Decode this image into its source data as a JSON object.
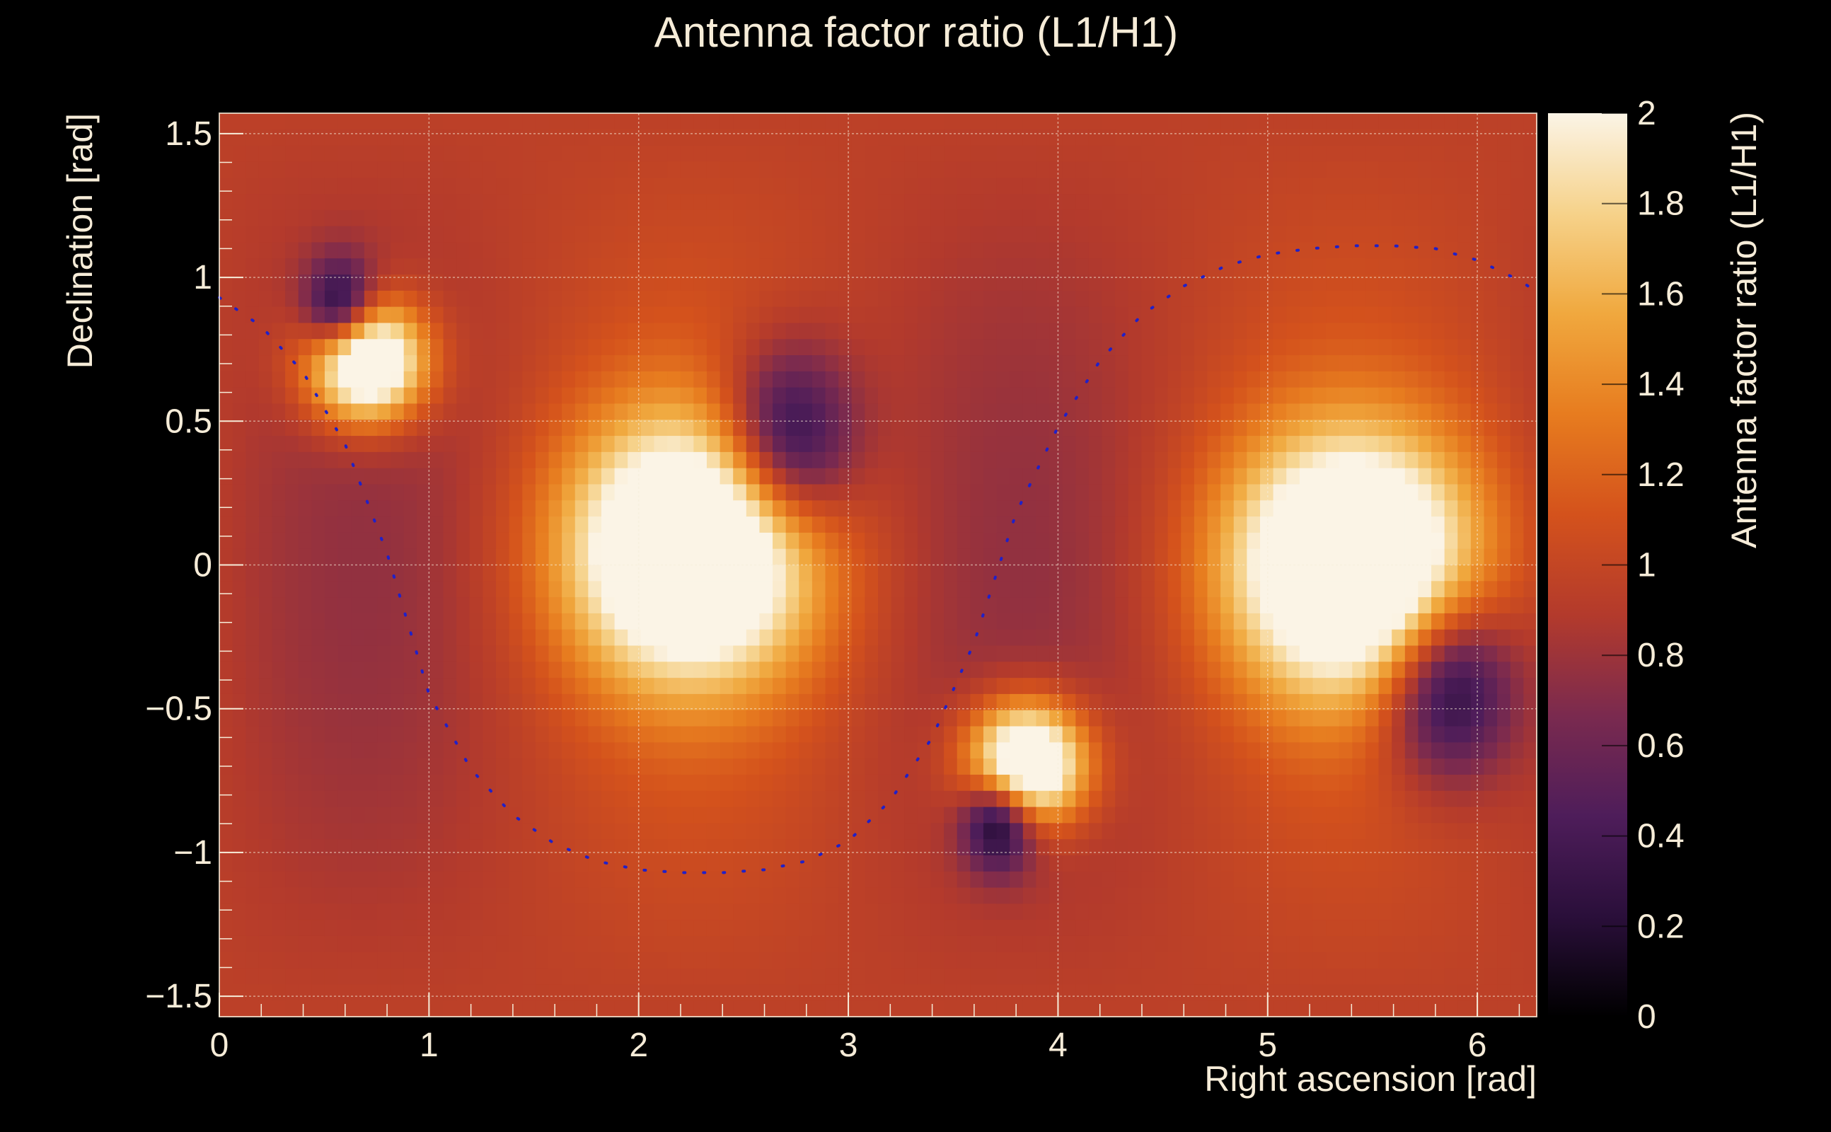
{
  "chart_data": {
    "type": "heatmap",
    "title": "Antenna factor ratio (L1/H1)",
    "xlabel": "Right ascension [rad]",
    "ylabel": "Declination [rad]",
    "zlabel": "Antenna factor ratio (L1/H1)",
    "xlim": [
      0,
      6.283
    ],
    "ylim": [
      -1.571,
      1.571
    ],
    "zlim": [
      0,
      2
    ],
    "x_ticks": [
      0,
      1,
      2,
      3,
      4,
      5,
      6
    ],
    "y_ticks": [
      -1.5,
      -1,
      -0.5,
      0,
      0.5,
      1,
      1.5
    ],
    "z_ticks": [
      0,
      0.2,
      0.4,
      0.6,
      0.8,
      1,
      1.2,
      1.4,
      1.6,
      1.8,
      2
    ],
    "tick_labels": {
      "x": [
        "0",
        "1",
        "2",
        "3",
        "4",
        "5",
        "6"
      ],
      "y": [
        "−1.5",
        "−1",
        "−0.5",
        "0",
        "0.5",
        "1",
        "1.5"
      ],
      "z": [
        "0",
        "0.2",
        "0.4",
        "0.6",
        "0.8",
        "1",
        "1.2",
        "1.4",
        "1.6",
        "1.8",
        "2"
      ]
    },
    "grid": true,
    "colormap": [
      "#000000",
      "#2a0f3a",
      "#4e1d5a",
      "#7a2a4f",
      "#b33a2c",
      "#d4521c",
      "#e77c1f",
      "#f0a83e",
      "#f6d28a",
      "#fbf4e6"
    ],
    "baseline_value": 0.95,
    "features": [
      {
        "kind": "max",
        "ra": 2.25,
        "dec": 0.05,
        "value": 2.0
      },
      {
        "kind": "max",
        "ra": 5.4,
        "dec": 0.0,
        "value": 2.0
      },
      {
        "kind": "max",
        "ra": 0.7,
        "dec": 0.71,
        "value": 2.0
      },
      {
        "kind": "max",
        "ra": 3.85,
        "dec": -0.69,
        "value": 2.0
      },
      {
        "kind": "min",
        "ra": 0.58,
        "dec": 0.88,
        "value": 0.0
      },
      {
        "kind": "min",
        "ra": 2.7,
        "dec": 0.42,
        "value": 0.05
      },
      {
        "kind": "min",
        "ra": 3.72,
        "dec": -0.88,
        "value": 0.0
      },
      {
        "kind": "min",
        "ra": 5.85,
        "dec": -0.41,
        "value": 0.05
      }
    ],
    "overlay_curve": {
      "style": "dotted",
      "color": "#2020c8",
      "points": [
        [
          0.0,
          0.93
        ],
        [
          0.2,
          0.83
        ],
        [
          0.4,
          0.67
        ],
        [
          0.6,
          0.42
        ],
        [
          0.8,
          0.04
        ],
        [
          1.0,
          -0.45
        ],
        [
          1.2,
          -0.71
        ],
        [
          1.4,
          -0.87
        ],
        [
          1.6,
          -0.97
        ],
        [
          1.8,
          -1.03
        ],
        [
          2.0,
          -1.06
        ],
        [
          2.2,
          -1.07
        ],
        [
          2.4,
          -1.07
        ],
        [
          2.6,
          -1.06
        ],
        [
          2.8,
          -1.03
        ],
        [
          3.0,
          -0.96
        ],
        [
          3.2,
          -0.82
        ],
        [
          3.4,
          -0.6
        ],
        [
          3.6,
          -0.27
        ],
        [
          3.8,
          0.18
        ],
        [
          4.0,
          0.48
        ],
        [
          4.2,
          0.71
        ],
        [
          4.4,
          0.87
        ],
        [
          4.6,
          0.97
        ],
        [
          4.8,
          1.04
        ],
        [
          5.0,
          1.08
        ],
        [
          5.2,
          1.1
        ],
        [
          5.4,
          1.11
        ],
        [
          5.6,
          1.11
        ],
        [
          5.8,
          1.1
        ],
        [
          6.0,
          1.06
        ],
        [
          6.2,
          0.99
        ],
        [
          6.283,
          0.95
        ]
      ]
    }
  }
}
